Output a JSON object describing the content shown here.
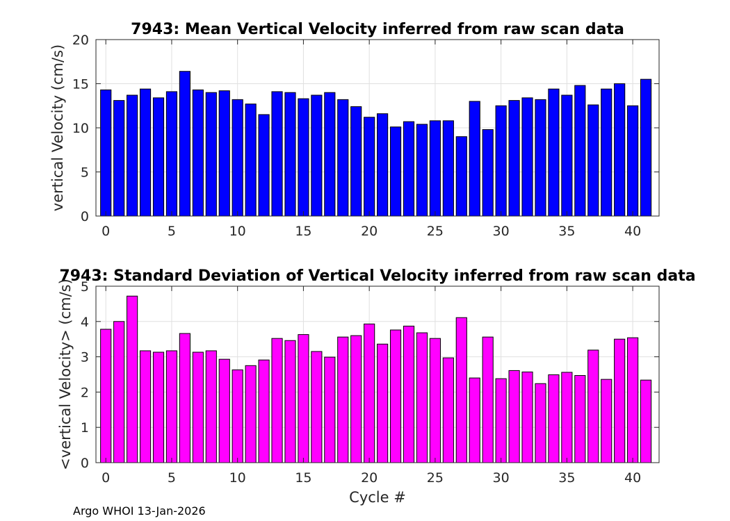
{
  "chart_data": [
    {
      "type": "bar",
      "title": "7943: Mean Vertical Velocity inferred from raw scan data",
      "xlabel": "",
      "ylabel": "vertical Velocity (cm/s)",
      "xlim": [
        -0.75,
        42
      ],
      "ylim": [
        0,
        20
      ],
      "xticks": [
        0,
        5,
        10,
        15,
        20,
        25,
        30,
        35,
        40
      ],
      "yticks": [
        0,
        5,
        10,
        15,
        20
      ],
      "grid": true,
      "bar_color": "#0000ff",
      "edge_color": "#000000",
      "x": [
        0,
        1,
        2,
        3,
        4,
        5,
        6,
        7,
        8,
        9,
        10,
        11,
        12,
        13,
        14,
        15,
        16,
        17,
        18,
        19,
        20,
        21,
        22,
        23,
        24,
        25,
        26,
        27,
        28,
        29,
        30,
        31,
        32,
        33,
        34,
        35,
        36,
        37,
        38,
        39,
        40,
        41
      ],
      "values": [
        14.3,
        13.1,
        13.7,
        14.4,
        13.4,
        14.1,
        16.4,
        14.3,
        14.0,
        14.2,
        13.2,
        12.7,
        11.5,
        14.1,
        14.0,
        13.3,
        13.7,
        14.0,
        13.2,
        12.4,
        11.2,
        11.6,
        10.1,
        10.7,
        10.4,
        10.8,
        10.8,
        9.0,
        13.0,
        9.8,
        12.5,
        13.1,
        13.4,
        13.2,
        14.4,
        13.7,
        14.8,
        12.6,
        14.4,
        15.0,
        12.5,
        15.5
      ]
    },
    {
      "type": "bar",
      "title": "7943: Standard Deviation of Vertical Velocity inferred from raw scan data",
      "xlabel": "Cycle #",
      "ylabel": "<vertical Velocity> (cm/s)",
      "xlim": [
        -0.75,
        42
      ],
      "ylim": [
        0,
        5
      ],
      "xticks": [
        0,
        5,
        10,
        15,
        20,
        25,
        30,
        35,
        40
      ],
      "yticks": [
        0,
        1,
        2,
        3,
        4,
        5
      ],
      "grid": true,
      "bar_color": "#ff00ff",
      "edge_color": "#000000",
      "x": [
        0,
        1,
        2,
        3,
        4,
        5,
        6,
        7,
        8,
        9,
        10,
        11,
        12,
        13,
        14,
        15,
        16,
        17,
        18,
        19,
        20,
        21,
        22,
        23,
        24,
        25,
        26,
        27,
        28,
        29,
        30,
        31,
        32,
        33,
        34,
        35,
        36,
        37,
        38,
        39,
        40,
        41
      ],
      "values": [
        3.78,
        4.0,
        4.72,
        3.17,
        3.13,
        3.17,
        3.66,
        3.13,
        3.17,
        2.93,
        2.63,
        2.75,
        2.91,
        3.52,
        3.46,
        3.63,
        3.15,
        2.99,
        3.56,
        3.6,
        3.93,
        3.36,
        3.76,
        3.87,
        3.68,
        3.52,
        2.97,
        4.11,
        2.4,
        3.56,
        2.38,
        2.61,
        2.57,
        2.24,
        2.49,
        2.56,
        2.47,
        3.19,
        2.36,
        3.5,
        3.54,
        2.34
      ]
    }
  ],
  "footer": {
    "credit": "Argo WHOI 13-Jan-2026"
  }
}
